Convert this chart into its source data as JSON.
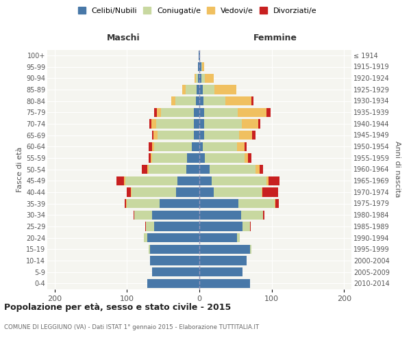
{
  "age_groups": [
    "0-4",
    "5-9",
    "10-14",
    "15-19",
    "20-24",
    "25-29",
    "30-34",
    "35-39",
    "40-44",
    "45-49",
    "50-54",
    "55-59",
    "60-64",
    "65-69",
    "70-74",
    "75-79",
    "80-84",
    "85-89",
    "90-94",
    "95-99",
    "100+"
  ],
  "birth_years": [
    "2010-2014",
    "2005-2009",
    "2000-2004",
    "1995-1999",
    "1990-1994",
    "1985-1989",
    "1980-1984",
    "1975-1979",
    "1970-1974",
    "1965-1969",
    "1960-1964",
    "1955-1959",
    "1950-1954",
    "1945-1949",
    "1940-1944",
    "1935-1939",
    "1930-1934",
    "1925-1929",
    "1920-1924",
    "1915-1919",
    "≤ 1914"
  ],
  "males": {
    "celibi": [
      72,
      65,
      68,
      68,
      72,
      62,
      65,
      55,
      32,
      30,
      18,
      17,
      10,
      8,
      8,
      8,
      5,
      4,
      2,
      2,
      1
    ],
    "coniugati": [
      0,
      0,
      0,
      2,
      5,
      12,
      25,
      45,
      62,
      72,
      52,
      48,
      52,
      50,
      52,
      45,
      28,
      15,
      3,
      0,
      0
    ],
    "vedovi": [
      0,
      0,
      0,
      0,
      0,
      0,
      0,
      1,
      1,
      2,
      2,
      2,
      3,
      5,
      6,
      6,
      6,
      5,
      2,
      0,
      0
    ],
    "divorziati": [
      0,
      0,
      0,
      0,
      0,
      1,
      1,
      2,
      5,
      10,
      7,
      3,
      5,
      2,
      3,
      3,
      0,
      0,
      0,
      0,
      0
    ]
  },
  "females": {
    "nubili": [
      70,
      60,
      65,
      70,
      52,
      60,
      58,
      54,
      20,
      17,
      14,
      8,
      5,
      7,
      7,
      7,
      6,
      5,
      3,
      3,
      1
    ],
    "coniugate": [
      0,
      0,
      0,
      2,
      4,
      10,
      30,
      50,
      66,
      76,
      64,
      54,
      47,
      48,
      52,
      46,
      30,
      16,
      5,
      1,
      0
    ],
    "vedove": [
      0,
      0,
      0,
      0,
      0,
      0,
      0,
      1,
      1,
      3,
      5,
      5,
      10,
      18,
      22,
      40,
      36,
      30,
      12,
      3,
      0
    ],
    "divorziate": [
      0,
      0,
      0,
      0,
      0,
      1,
      2,
      5,
      22,
      15,
      5,
      5,
      3,
      5,
      3,
      5,
      3,
      0,
      0,
      0,
      0
    ]
  },
  "colors": {
    "celibi": "#4878a8",
    "coniugati": "#c8d8a0",
    "vedovi": "#f0c060",
    "divorziati": "#c82020"
  },
  "xlim": 210,
  "title": "Popolazione per età, sesso e stato civile - 2015",
  "subtitle": "COMUNE DI LEGGIUNO (VA) - Dati ISTAT 1° gennaio 2015 - Elaborazione TUTTITALIA.IT",
  "ylabel_left": "Fasce di età",
  "ylabel_right": "Anni di nascita",
  "xlabel_left": "Maschi",
  "xlabel_right": "Femmine",
  "bg_color": "#f5f5f0"
}
